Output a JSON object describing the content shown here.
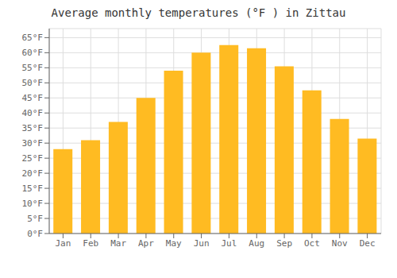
{
  "chart_data": {
    "type": "bar",
    "title": "Average monthly temperatures (°F ) in Zittau",
    "categories": [
      "Jan",
      "Feb",
      "Mar",
      "Apr",
      "May",
      "Jun",
      "Jul",
      "Aug",
      "Sep",
      "Oct",
      "Nov",
      "Dec"
    ],
    "values": [
      28,
      31,
      37,
      45,
      54,
      60,
      62.5,
      61.5,
      55.5,
      47.5,
      38,
      31.5
    ],
    "color": "#FFBB22",
    "ylim": [
      0,
      68
    ],
    "yticks": [
      {
        "value": 0,
        "label": "0°F"
      },
      {
        "value": 5,
        "label": "5°F"
      },
      {
        "value": 10,
        "label": "10°F"
      },
      {
        "value": 15,
        "label": "15°F"
      },
      {
        "value": 20,
        "label": "20°F"
      },
      {
        "value": 25,
        "label": "25°F"
      },
      {
        "value": 30,
        "label": "30°F"
      },
      {
        "value": 35,
        "label": "35°F"
      },
      {
        "value": 40,
        "label": "40°F"
      },
      {
        "value": 45,
        "label": "45°F"
      },
      {
        "value": 50,
        "label": "50°F"
      },
      {
        "value": 55,
        "label": "55°F"
      },
      {
        "value": 60,
        "label": "60°F"
      },
      {
        "value": 65,
        "label": "65°F"
      }
    ],
    "grid": true
  }
}
